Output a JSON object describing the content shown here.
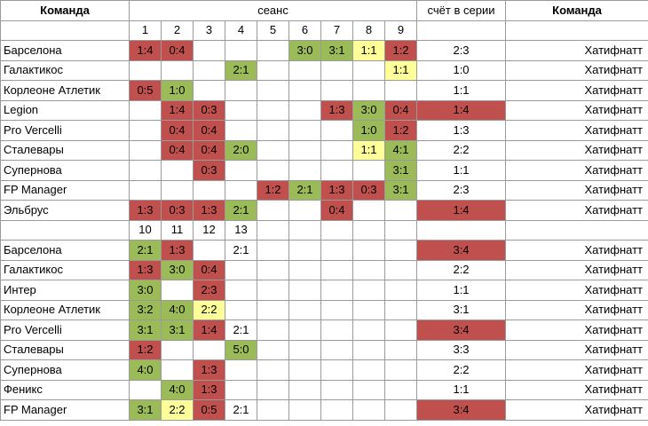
{
  "header": {
    "team_label": "Команда",
    "session_label": "сеанс",
    "series_label": "счёт в серии",
    "opponent_label": "Команда"
  },
  "colors": {
    "loss": "#c0504d",
    "win": "#9bbb59",
    "draw": "#ffff99"
  },
  "blocks": [
    {
      "sessions": [
        "1",
        "2",
        "3",
        "4",
        "5",
        "6",
        "7",
        "8",
        "9"
      ],
      "rows": [
        {
          "team": "Барселона",
          "series": "2:3",
          "series_status": "",
          "opponent": "Хатифнатт",
          "scores": [
            {
              "v": "1:4",
              "s": "loss"
            },
            {
              "v": "0:4",
              "s": "loss"
            },
            {
              "v": "",
              "s": ""
            },
            {
              "v": "",
              "s": ""
            },
            {
              "v": "",
              "s": ""
            },
            {
              "v": "3:0",
              "s": "win"
            },
            {
              "v": "3:1",
              "s": "win"
            },
            {
              "v": "1:1",
              "s": "draw"
            },
            {
              "v": "1:2",
              "s": "loss"
            }
          ]
        },
        {
          "team": "Галактикос",
          "series": "1:0",
          "series_status": "",
          "opponent": "Хатифнатт",
          "scores": [
            {
              "v": "",
              "s": ""
            },
            {
              "v": "",
              "s": ""
            },
            {
              "v": "",
              "s": ""
            },
            {
              "v": "2:1",
              "s": "win"
            },
            {
              "v": "",
              "s": ""
            },
            {
              "v": "",
              "s": ""
            },
            {
              "v": "",
              "s": ""
            },
            {
              "v": "",
              "s": ""
            },
            {
              "v": "1:1",
              "s": "draw"
            }
          ]
        },
        {
          "team": "Корлеоне Атлетик",
          "series": "1:1",
          "series_status": "",
          "opponent": "Хатифнатт",
          "scores": [
            {
              "v": "0:5",
              "s": "loss"
            },
            {
              "v": "1:0",
              "s": "win"
            },
            {
              "v": "",
              "s": ""
            },
            {
              "v": "",
              "s": ""
            },
            {
              "v": "",
              "s": ""
            },
            {
              "v": "",
              "s": ""
            },
            {
              "v": "",
              "s": ""
            },
            {
              "v": "",
              "s": ""
            },
            {
              "v": "",
              "s": ""
            }
          ]
        },
        {
          "team": "Legion",
          "series": "1:4",
          "series_status": "loss",
          "opponent": "Хатифнатт",
          "scores": [
            {
              "v": "",
              "s": ""
            },
            {
              "v": "1:4",
              "s": "loss"
            },
            {
              "v": "0:3",
              "s": "loss"
            },
            {
              "v": "",
              "s": ""
            },
            {
              "v": "",
              "s": ""
            },
            {
              "v": "",
              "s": ""
            },
            {
              "v": "1:3",
              "s": "loss"
            },
            {
              "v": "3:0",
              "s": "win"
            },
            {
              "v": "0:4",
              "s": "loss"
            }
          ]
        },
        {
          "team": "Pro Vercelli",
          "series": "1:3",
          "series_status": "",
          "opponent": "Хатифнатт",
          "scores": [
            {
              "v": "",
              "s": ""
            },
            {
              "v": "0:4",
              "s": "loss"
            },
            {
              "v": "0:4",
              "s": "loss"
            },
            {
              "v": "",
              "s": ""
            },
            {
              "v": "",
              "s": ""
            },
            {
              "v": "",
              "s": ""
            },
            {
              "v": "",
              "s": ""
            },
            {
              "v": "1:0",
              "s": "win"
            },
            {
              "v": "1:2",
              "s": "loss"
            }
          ]
        },
        {
          "team": "Сталевары",
          "series": "2:2",
          "series_status": "",
          "opponent": "Хатифнатт",
          "scores": [
            {
              "v": "",
              "s": ""
            },
            {
              "v": "0:4",
              "s": "loss"
            },
            {
              "v": "0:4",
              "s": "loss"
            },
            {
              "v": "2:0",
              "s": "win"
            },
            {
              "v": "",
              "s": ""
            },
            {
              "v": "",
              "s": ""
            },
            {
              "v": "",
              "s": ""
            },
            {
              "v": "1:1",
              "s": "draw"
            },
            {
              "v": "4:1",
              "s": "win"
            }
          ]
        },
        {
          "team": "Супернова",
          "series": "1:1",
          "series_status": "",
          "opponent": "Хатифнатт",
          "scores": [
            {
              "v": "",
              "s": ""
            },
            {
              "v": "",
              "s": ""
            },
            {
              "v": "0:3",
              "s": "loss"
            },
            {
              "v": "",
              "s": ""
            },
            {
              "v": "",
              "s": ""
            },
            {
              "v": "",
              "s": ""
            },
            {
              "v": "",
              "s": ""
            },
            {
              "v": "",
              "s": ""
            },
            {
              "v": "3:1",
              "s": "win"
            }
          ]
        },
        {
          "team": "FP Manager",
          "series": "2:3",
          "series_status": "",
          "opponent": "Хатифнатт",
          "scores": [
            {
              "v": "",
              "s": ""
            },
            {
              "v": "",
              "s": ""
            },
            {
              "v": "",
              "s": ""
            },
            {
              "v": "",
              "s": ""
            },
            {
              "v": "1:2",
              "s": "loss"
            },
            {
              "v": "2:1",
              "s": "win"
            },
            {
              "v": "1:3",
              "s": "loss"
            },
            {
              "v": "0:3",
              "s": "loss"
            },
            {
              "v": "3:1",
              "s": "win"
            }
          ]
        },
        {
          "team": "Эльбрус",
          "series": "1:4",
          "series_status": "loss",
          "opponent": "Хатифнатт",
          "scores": [
            {
              "v": "1:3",
              "s": "loss"
            },
            {
              "v": "0:3",
              "s": "loss"
            },
            {
              "v": "1:3",
              "s": "loss"
            },
            {
              "v": "2:1",
              "s": "win"
            },
            {
              "v": "",
              "s": ""
            },
            {
              "v": "",
              "s": ""
            },
            {
              "v": "0:4",
              "s": "loss"
            },
            {
              "v": "",
              "s": ""
            },
            {
              "v": "",
              "s": ""
            }
          ]
        }
      ]
    },
    {
      "sessions": [
        "10",
        "11",
        "12",
        "13",
        "",
        "",
        "",
        "",
        ""
      ],
      "rows": [
        {
          "team": "Барселона",
          "series": "3:4",
          "series_status": "loss",
          "opponent": "Хатифнатт",
          "scores": [
            {
              "v": "2:1",
              "s": "win"
            },
            {
              "v": "1:3",
              "s": "loss"
            },
            {
              "v": "",
              "s": ""
            },
            {
              "v": "2:1",
              "s": ""
            },
            {
              "v": "",
              "s": ""
            },
            {
              "v": "",
              "s": ""
            },
            {
              "v": "",
              "s": ""
            },
            {
              "v": "",
              "s": ""
            },
            {
              "v": "",
              "s": ""
            }
          ]
        },
        {
          "team": "Галактикос",
          "series": "2:2",
          "series_status": "",
          "opponent": "Хатифнатт",
          "scores": [
            {
              "v": "1:3",
              "s": "loss"
            },
            {
              "v": "3:0",
              "s": "win"
            },
            {
              "v": "0:4",
              "s": "loss"
            },
            {
              "v": "",
              "s": ""
            },
            {
              "v": "",
              "s": ""
            },
            {
              "v": "",
              "s": ""
            },
            {
              "v": "",
              "s": ""
            },
            {
              "v": "",
              "s": ""
            },
            {
              "v": "",
              "s": ""
            }
          ]
        },
        {
          "team": "Интер",
          "series": "1:1",
          "series_status": "",
          "opponent": "Хатифнатт",
          "scores": [
            {
              "v": "3:0",
              "s": "win"
            },
            {
              "v": "",
              "s": ""
            },
            {
              "v": "2:3",
              "s": "loss"
            },
            {
              "v": "",
              "s": ""
            },
            {
              "v": "",
              "s": ""
            },
            {
              "v": "",
              "s": ""
            },
            {
              "v": "",
              "s": ""
            },
            {
              "v": "",
              "s": ""
            },
            {
              "v": "",
              "s": ""
            }
          ]
        },
        {
          "team": "Корлеоне Атлетик",
          "series": "3:1",
          "series_status": "",
          "opponent": "Хатифнатт",
          "scores": [
            {
              "v": "3:2",
              "s": "win"
            },
            {
              "v": "4:0",
              "s": "win"
            },
            {
              "v": "2:2",
              "s": "draw"
            },
            {
              "v": "",
              "s": ""
            },
            {
              "v": "",
              "s": ""
            },
            {
              "v": "",
              "s": ""
            },
            {
              "v": "",
              "s": ""
            },
            {
              "v": "",
              "s": ""
            },
            {
              "v": "",
              "s": ""
            }
          ]
        },
        {
          "team": "Pro Vercelli",
          "series": "3:4",
          "series_status": "loss",
          "opponent": "Хатифнатт",
          "scores": [
            {
              "v": "3:1",
              "s": "win"
            },
            {
              "v": "3:1",
              "s": "win"
            },
            {
              "v": "1:4",
              "s": "loss"
            },
            {
              "v": "2:1",
              "s": ""
            },
            {
              "v": "",
              "s": ""
            },
            {
              "v": "",
              "s": ""
            },
            {
              "v": "",
              "s": ""
            },
            {
              "v": "",
              "s": ""
            },
            {
              "v": "",
              "s": ""
            }
          ]
        },
        {
          "team": "Сталевары",
          "series": "3:3",
          "series_status": "",
          "opponent": "Хатифнатт",
          "scores": [
            {
              "v": "1:2",
              "s": "loss"
            },
            {
              "v": "",
              "s": ""
            },
            {
              "v": "",
              "s": ""
            },
            {
              "v": "5:0",
              "s": "win"
            },
            {
              "v": "",
              "s": ""
            },
            {
              "v": "",
              "s": ""
            },
            {
              "v": "",
              "s": ""
            },
            {
              "v": "",
              "s": ""
            },
            {
              "v": "",
              "s": ""
            }
          ]
        },
        {
          "team": "Супернова",
          "series": "2:2",
          "series_status": "",
          "opponent": "Хатифнатт",
          "scores": [
            {
              "v": "4:0",
              "s": "win"
            },
            {
              "v": "",
              "s": ""
            },
            {
              "v": "1:3",
              "s": "loss"
            },
            {
              "v": "",
              "s": ""
            },
            {
              "v": "",
              "s": ""
            },
            {
              "v": "",
              "s": ""
            },
            {
              "v": "",
              "s": ""
            },
            {
              "v": "",
              "s": ""
            },
            {
              "v": "",
              "s": ""
            }
          ]
        },
        {
          "team": "Феникс",
          "series": "1:1",
          "series_status": "",
          "opponent": "Хатифнатт",
          "scores": [
            {
              "v": "",
              "s": ""
            },
            {
              "v": "4:0",
              "s": "win"
            },
            {
              "v": "1:3",
              "s": "loss"
            },
            {
              "v": "",
              "s": ""
            },
            {
              "v": "",
              "s": ""
            },
            {
              "v": "",
              "s": ""
            },
            {
              "v": "",
              "s": ""
            },
            {
              "v": "",
              "s": ""
            },
            {
              "v": "",
              "s": ""
            }
          ]
        },
        {
          "team": "FP Manager",
          "series": "3:4",
          "series_status": "loss",
          "opponent": "Хатифнатт",
          "scores": [
            {
              "v": "3:1",
              "s": "win"
            },
            {
              "v": "2:2",
              "s": "draw"
            },
            {
              "v": "0:5",
              "s": "loss"
            },
            {
              "v": "2:1",
              "s": ""
            },
            {
              "v": "",
              "s": ""
            },
            {
              "v": "",
              "s": ""
            },
            {
              "v": "",
              "s": ""
            },
            {
              "v": "",
              "s": ""
            },
            {
              "v": "",
              "s": ""
            }
          ]
        }
      ]
    }
  ]
}
